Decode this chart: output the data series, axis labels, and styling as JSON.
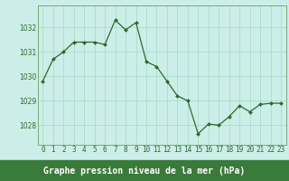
{
  "x": [
    0,
    1,
    2,
    3,
    4,
    5,
    6,
    7,
    8,
    9,
    10,
    11,
    12,
    13,
    14,
    15,
    16,
    17,
    18,
    19,
    20,
    21,
    22,
    23
  ],
  "y": [
    1029.8,
    1030.7,
    1031.0,
    1031.4,
    1031.4,
    1031.4,
    1031.3,
    1032.3,
    1031.9,
    1032.2,
    1030.6,
    1030.4,
    1029.8,
    1029.2,
    1029.0,
    1027.65,
    1028.05,
    1028.0,
    1028.35,
    1028.8,
    1028.55,
    1028.85,
    1028.9,
    1028.9
  ],
  "line_color": "#2d6a2d",
  "marker_color": "#2d6a2d",
  "bg_color": "#cceee8",
  "grid_color": "#aaddcc",
  "xlabel_ticks": [
    "0",
    "1",
    "2",
    "3",
    "4",
    "5",
    "6",
    "7",
    "8",
    "9",
    "10",
    "11",
    "12",
    "13",
    "14",
    "15",
    "16",
    "17",
    "18",
    "19",
    "20",
    "21",
    "22",
    "23"
  ],
  "yticks": [
    1028,
    1029,
    1030,
    1031,
    1032
  ],
  "ylim": [
    1027.2,
    1032.9
  ],
  "xlim": [
    -0.5,
    23.5
  ],
  "tick_color": "#2d6a2d",
  "tick_fontsize": 5.5,
  "title": "Graphe pression niveau de la mer (hPa)",
  "title_fontsize": 7.0,
  "title_color": "#1a4a1a",
  "border_color": "#7aaa7a",
  "bottom_bar_color": "#3a7a3a"
}
